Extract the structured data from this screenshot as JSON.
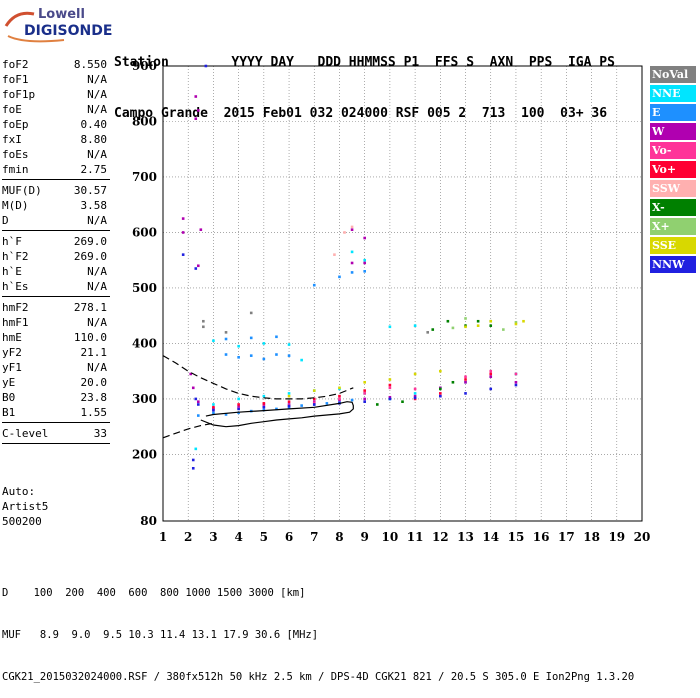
{
  "logo": {
    "line1": "Lowell",
    "line2": "DIGISONDE"
  },
  "header": {
    "line1": "Station        YYYY DAY   DDD HHMMSS P1  FFS S  AXN  PPS  IGA PS",
    "line2": "Campo Grande  2015 Feb01 032 024000 RSF 005 2  713  100  03+ 36"
  },
  "params_groups": [
    [
      {
        "label": "foF2",
        "value": "8.550"
      },
      {
        "label": "foF1",
        "value": "N/A"
      },
      {
        "label": "foF1p",
        "value": "N/A"
      },
      {
        "label": "foE",
        "value": "N/A"
      },
      {
        "label": "foEp",
        "value": "0.40"
      },
      {
        "label": "fxI",
        "value": "8.80"
      },
      {
        "label": "foEs",
        "value": "N/A"
      },
      {
        "label": "fmin",
        "value": "2.75"
      }
    ],
    [
      {
        "label": "MUF(D)",
        "value": "30.57"
      },
      {
        "label": "M(D)",
        "value": "3.58"
      },
      {
        "label": "D",
        "value": "N/A"
      }
    ],
    [
      {
        "label": "h`F",
        "value": "269.0"
      },
      {
        "label": "h`F2",
        "value": "269.0"
      },
      {
        "label": "h`E",
        "value": "N/A"
      },
      {
        "label": "h`Es",
        "value": "N/A"
      }
    ],
    [
      {
        "label": "hmF2",
        "value": "278.1"
      },
      {
        "label": "hmF1",
        "value": "N/A"
      },
      {
        "label": "hmE",
        "value": "110.0"
      },
      {
        "label": "yF2",
        "value": "21.1"
      },
      {
        "label": "yF1",
        "value": "N/A"
      },
      {
        "label": "yE",
        "value": "20.0"
      },
      {
        "label": "B0",
        "value": "23.8"
      },
      {
        "label": "B1",
        "value": "1.55"
      }
    ],
    [
      {
        "label": "C-level",
        "value": "33"
      }
    ]
  ],
  "auto": {
    "l1": "Auto:",
    "l2": "Artist5",
    "l3": "500200"
  },
  "legend": [
    {
      "label": "NoVal",
      "color": "#808080"
    },
    {
      "label": "NNE",
      "color": "#00e5ff"
    },
    {
      "label": "E",
      "color": "#1e90ff"
    },
    {
      "label": "W",
      "color": "#b000b0"
    },
    {
      "label": "Vo-",
      "color": "#ff3399"
    },
    {
      "label": "Vo+",
      "color": "#ff0033"
    },
    {
      "label": "SSW",
      "color": "#ffb0b0"
    },
    {
      "label": "X-",
      "color": "#008000"
    },
    {
      "label": "X+",
      "color": "#90d070"
    },
    {
      "label": "SSE",
      "color": "#d8d800"
    },
    {
      "label": "NNW",
      "color": "#2020e0"
    }
  ],
  "footer": {
    "line1": "D    100  200  400  600  800 1000 1500 3000 [km]",
    "line2": "MUF   8.9  9.0  9.5 10.3 11.4 13.1 17.9 30.6 [MHz]",
    "line3": "CGK21_2015032024000.RSF / 380fx512h 50 kHz 2.5 km / DPS-4D CGK21 821 / 20.5 S 305.0 E Ion2Png 1.3.20"
  },
  "chart_data": {
    "type": "scatter",
    "title": "",
    "xlabel": "",
    "ylabel": "",
    "xlim": [
      1,
      20
    ],
    "ylim": [
      80,
      900
    ],
    "x_ticks": [
      1,
      2,
      3,
      4,
      5,
      6,
      7,
      8,
      9,
      10,
      11,
      12,
      13,
      14,
      15,
      16,
      17,
      18,
      19,
      20
    ],
    "y_ticks": [
      80,
      200,
      300,
      400,
      500,
      600,
      700,
      800,
      900
    ],
    "grid": true,
    "legend_position": "right",
    "series": [
      {
        "name": "E",
        "color": "#1e90ff",
        "points": [
          [
            2.4,
            270
          ],
          [
            3,
            275
          ],
          [
            3.5,
            272
          ],
          [
            4,
            275
          ],
          [
            4.5,
            278
          ],
          [
            5,
            280
          ],
          [
            5.5,
            282
          ],
          [
            6,
            285
          ],
          [
            6.5,
            288
          ],
          [
            7,
            290
          ],
          [
            7.5,
            292
          ],
          [
            8,
            294
          ],
          [
            8.5,
            298
          ],
          [
            3.5,
            380
          ],
          [
            4,
            375
          ],
          [
            4.5,
            378
          ],
          [
            5,
            372
          ],
          [
            5.5,
            380
          ],
          [
            6,
            378
          ],
          [
            3.5,
            408
          ],
          [
            4.5,
            410
          ],
          [
            5.5,
            412
          ],
          [
            7,
            505
          ],
          [
            8,
            520
          ],
          [
            8.5,
            528
          ],
          [
            9,
            530
          ]
        ]
      },
      {
        "name": "NNE",
        "color": "#00e5ff",
        "points": [
          [
            3,
            290
          ],
          [
            4,
            300
          ],
          [
            5,
            305
          ],
          [
            6,
            310
          ],
          [
            7,
            315
          ],
          [
            8,
            318
          ],
          [
            9,
            310
          ],
          [
            10,
            300
          ],
          [
            11,
            310
          ],
          [
            12,
            320
          ],
          [
            13,
            330
          ],
          [
            14,
            340
          ],
          [
            15,
            345
          ],
          [
            3,
            405
          ],
          [
            4,
            395
          ],
          [
            5,
            400
          ],
          [
            6,
            398
          ],
          [
            6.5,
            370
          ],
          [
            10,
            430
          ],
          [
            11,
            432
          ],
          [
            9,
            550
          ],
          [
            8.5,
            565
          ],
          [
            2.3,
            210
          ]
        ]
      },
      {
        "name": "W",
        "color": "#b000b0",
        "points": [
          [
            2.1,
            345
          ],
          [
            2.2,
            320
          ],
          [
            2.4,
            295
          ],
          [
            3,
            283
          ],
          [
            4,
            286
          ],
          [
            5,
            290
          ],
          [
            6,
            290
          ],
          [
            7,
            295
          ],
          [
            8,
            298
          ],
          [
            9,
            300
          ],
          [
            10,
            303
          ],
          [
            11,
            305
          ],
          [
            12,
            320
          ],
          [
            13,
            330
          ],
          [
            14,
            340
          ],
          [
            15,
            330
          ],
          [
            8.5,
            545
          ],
          [
            9,
            545
          ],
          [
            9,
            590
          ],
          [
            8.5,
            605
          ],
          [
            2.3,
            805
          ],
          [
            2.4,
            820
          ],
          [
            2.3,
            845
          ],
          [
            1.8,
            625
          ],
          [
            1.8,
            600
          ],
          [
            2.4,
            540
          ],
          [
            2.5,
            605
          ]
        ]
      },
      {
        "name": "Vo-",
        "color": "#ff3399",
        "points": [
          [
            3,
            280
          ],
          [
            4,
            283
          ],
          [
            5,
            286
          ],
          [
            6,
            288
          ],
          [
            7,
            293
          ],
          [
            8,
            300
          ],
          [
            9,
            310
          ],
          [
            10,
            320
          ],
          [
            11,
            318
          ],
          [
            12,
            305
          ],
          [
            13,
            340
          ],
          [
            14,
            350
          ],
          [
            15,
            345
          ]
        ]
      },
      {
        "name": "Vo+",
        "color": "#ff0033",
        "points": [
          [
            3,
            285
          ],
          [
            4,
            290
          ],
          [
            5,
            292
          ],
          [
            6,
            295
          ],
          [
            7,
            300
          ],
          [
            8,
            305
          ],
          [
            9,
            315
          ],
          [
            10,
            325
          ],
          [
            11,
            300
          ],
          [
            12,
            310
          ],
          [
            13,
            335
          ],
          [
            14,
            345
          ]
        ]
      },
      {
        "name": "SSW",
        "color": "#ffb0b0",
        "points": [
          [
            8.5,
            610
          ],
          [
            8.2,
            600
          ],
          [
            7.8,
            560
          ]
        ]
      },
      {
        "name": "X-",
        "color": "#008000",
        "points": [
          [
            11.7,
            425
          ],
          [
            12.3,
            440
          ],
          [
            13,
            432
          ],
          [
            13.5,
            440
          ],
          [
            14,
            432
          ],
          [
            9.5,
            290
          ],
          [
            10.5,
            295
          ],
          [
            12,
            318
          ],
          [
            12.5,
            330
          ]
        ]
      },
      {
        "name": "X+",
        "color": "#90d070",
        "points": [
          [
            12.5,
            428
          ],
          [
            13,
            445
          ],
          [
            14,
            440
          ],
          [
            15,
            438
          ],
          [
            14.5,
            425
          ]
        ]
      },
      {
        "name": "SSE",
        "color": "#d8d800",
        "points": [
          [
            6,
            305
          ],
          [
            7,
            315
          ],
          [
            8,
            320
          ],
          [
            9,
            330
          ],
          [
            10,
            335
          ],
          [
            11,
            345
          ],
          [
            12,
            350
          ],
          [
            13,
            430
          ],
          [
            14,
            440
          ],
          [
            15,
            435
          ],
          [
            15.3,
            440
          ],
          [
            13.5,
            432
          ]
        ]
      },
      {
        "name": "NNW",
        "color": "#2020e0",
        "points": [
          [
            2.3,
            300
          ],
          [
            2.4,
            290
          ],
          [
            2.2,
            190
          ],
          [
            2.2,
            175
          ],
          [
            3,
            280
          ],
          [
            4,
            282
          ],
          [
            5,
            285
          ],
          [
            6,
            287
          ],
          [
            7,
            290
          ],
          [
            8,
            292
          ],
          [
            9,
            295
          ],
          [
            10,
            300
          ],
          [
            11,
            302
          ],
          [
            12,
            305
          ],
          [
            13,
            310
          ],
          [
            14,
            318
          ],
          [
            15,
            325
          ],
          [
            2.7,
            900
          ],
          [
            1.8,
            560
          ],
          [
            2.3,
            535
          ]
        ]
      },
      {
        "name": "NoVal",
        "color": "#808080",
        "points": [
          [
            2.6,
            440
          ],
          [
            2.6,
            430
          ],
          [
            4.5,
            455
          ],
          [
            3.5,
            420
          ],
          [
            11.5,
            420
          ]
        ]
      }
    ],
    "curves": [
      {
        "name": "dashed",
        "style": "dashed",
        "points": [
          [
            1,
            378
          ],
          [
            1.5,
            365
          ],
          [
            2,
            350
          ],
          [
            2.5,
            338
          ],
          [
            3,
            328
          ],
          [
            3.5,
            318
          ],
          [
            4,
            310
          ],
          [
            4.5,
            305
          ],
          [
            5,
            302
          ],
          [
            5.5,
            300
          ],
          [
            6,
            300
          ],
          [
            6.5,
            300
          ],
          [
            7,
            302
          ],
          [
            7.5,
            305
          ],
          [
            8,
            310
          ],
          [
            8.55,
            320
          ]
        ]
      },
      {
        "name": "dashed-lower",
        "style": "dashed",
        "points": [
          [
            1,
            230
          ],
          [
            1.5,
            238
          ],
          [
            2,
            246
          ],
          [
            2.5,
            252
          ],
          [
            3,
            256
          ]
        ]
      },
      {
        "name": "profile",
        "style": "solid",
        "points": [
          [
            2.5,
            262
          ],
          [
            3,
            253
          ],
          [
            3.5,
            250
          ],
          [
            4,
            252
          ],
          [
            4.5,
            256
          ],
          [
            5,
            259
          ],
          [
            5.5,
            262
          ],
          [
            6,
            264
          ],
          [
            6.5,
            266
          ],
          [
            7,
            269
          ],
          [
            7.5,
            271
          ],
          [
            8,
            273
          ],
          [
            8.4,
            276
          ],
          [
            8.55,
            282
          ],
          [
            8.55,
            288
          ],
          [
            8.5,
            294
          ],
          [
            8.3,
            295
          ],
          [
            8,
            292
          ],
          [
            7,
            285
          ],
          [
            6,
            282
          ],
          [
            5,
            279
          ],
          [
            4,
            276
          ],
          [
            3,
            272
          ],
          [
            2.7,
            269
          ]
        ]
      }
    ]
  }
}
